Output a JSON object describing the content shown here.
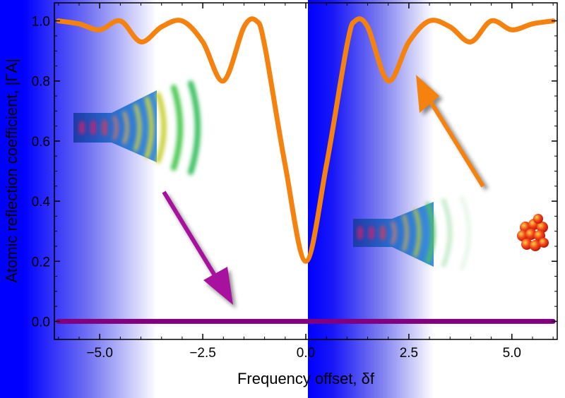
{
  "chart_data": {
    "type": "line",
    "title": "",
    "xlabel": "Frequency offset, δf",
    "ylabel": "Atomic reflection coefficient, |ΓA|",
    "xlim": [
      -6.1,
      6.1
    ],
    "ylim": [
      -0.06,
      1.06
    ],
    "xticks": [
      -5.0,
      -2.5,
      0.0,
      2.5,
      5.0
    ],
    "xtick_labels": [
      "−5.0",
      "−2.5",
      "0.0",
      "2.5",
      "5.0"
    ],
    "yticks": [
      0.0,
      0.2,
      0.4,
      0.6,
      0.8,
      1.0
    ],
    "ytick_labels": [
      "0.0",
      "0.2",
      "0.4",
      "0.6",
      "0.8",
      "1.0"
    ],
    "grid": false,
    "series": [
      {
        "color": "#f5820f",
        "x": [
          -6.0,
          -5.5,
          -5.0,
          -4.5,
          -4.0,
          -3.5,
          -3.0,
          -2.5,
          -2.0,
          -1.5,
          -1.2,
          -1.0,
          -0.5,
          0.0,
          0.5,
          1.0,
          1.2,
          1.5,
          2.0,
          2.5,
          3.0,
          3.5,
          4.0,
          4.5,
          5.0,
          5.5,
          6.0
        ],
        "values": [
          1.0,
          0.99,
          0.97,
          1.0,
          0.93,
          0.98,
          1.0,
          0.93,
          0.8,
          0.98,
          1.0,
          0.92,
          0.52,
          0.2,
          0.52,
          0.92,
          1.0,
          0.98,
          0.8,
          0.93,
          1.0,
          0.98,
          0.93,
          1.0,
          0.97,
          0.99,
          1.0
        ]
      },
      {
        "color": "#800080",
        "x": [
          -6.0,
          6.0
        ],
        "values": [
          0.0,
          0.0
        ]
      }
    ]
  },
  "colors": {
    "band": "#0000ff",
    "reflected_line": "#f5820f",
    "transmitted_line": "#800080",
    "arrow_in": "#a8119e",
    "arrow_out": "#f5820f"
  }
}
